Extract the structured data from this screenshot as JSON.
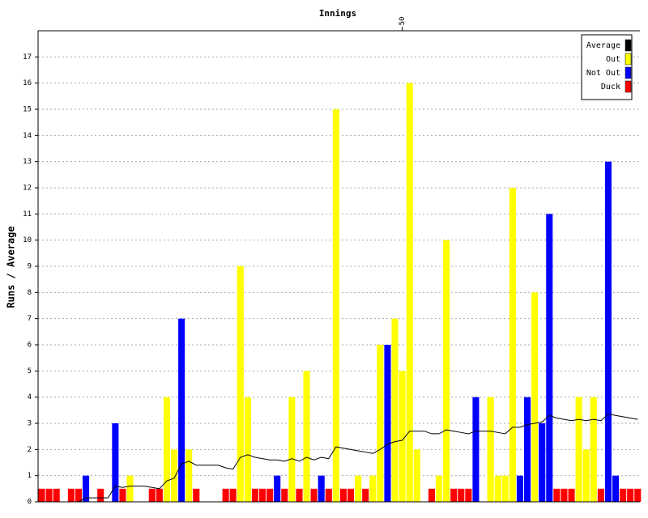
{
  "chart_data": {
    "type": "bar",
    "title": "Innings",
    "y_label": "Runs / Average",
    "x": [
      1,
      2,
      3,
      4,
      5,
      6,
      7,
      8,
      9,
      10,
      11,
      12,
      13,
      14,
      15,
      16,
      17,
      18,
      19,
      20,
      21,
      22,
      23,
      24,
      25,
      26,
      27,
      28,
      29,
      30,
      31,
      32,
      33,
      34,
      35,
      36,
      37,
      38,
      39,
      40,
      41,
      42,
      43,
      44,
      45,
      46,
      47,
      48,
      49,
      50,
      51,
      52,
      53,
      54,
      55,
      56,
      57,
      58,
      59,
      60,
      61,
      62,
      63,
      64,
      65,
      66,
      67,
      68,
      69,
      70,
      71,
      72,
      73,
      74,
      75,
      76,
      77,
      78,
      79,
      80,
      81,
      82
    ],
    "xlim": [
      0.5,
      82.3
    ],
    "xticks": [
      50
    ],
    "ylim": [
      0,
      18
    ],
    "yticks": [
      0,
      1,
      2,
      3,
      4,
      5,
      6,
      7,
      8,
      9,
      10,
      11,
      12,
      13,
      14,
      15,
      16,
      17
    ],
    "grid": true,
    "legend": "top-right",
    "series": [
      {
        "name": "Average",
        "type": "line",
        "color": "#000000",
        "values": [
          0,
          0,
          0,
          0,
          0,
          0,
          0.15,
          0.15,
          0.15,
          0.15,
          0.6,
          0.55,
          0.6,
          0.6,
          0.6,
          0.55,
          0.5,
          0.8,
          0.9,
          1.45,
          1.55,
          1.4,
          1.4,
          1.4,
          1.4,
          1.3,
          1.25,
          1.7,
          1.8,
          1.7,
          1.65,
          1.6,
          1.6,
          1.55,
          1.65,
          1.55,
          1.7,
          1.6,
          1.7,
          1.65,
          2.1,
          2.05,
          2.0,
          1.95,
          1.9,
          1.85,
          2.0,
          2.2,
          2.3,
          2.35,
          2.7,
          2.7,
          2.7,
          2.6,
          2.6,
          2.75,
          2.7,
          2.65,
          2.6,
          2.7,
          2.7,
          2.7,
          2.65,
          2.6,
          2.85,
          2.85,
          2.95,
          3.0,
          3.05,
          3.3,
          3.2,
          3.15,
          3.1,
          3.15,
          3.1,
          3.15,
          3.1,
          3.35,
          3.3,
          3.25,
          3.2,
          3.15
        ]
      },
      {
        "name": "Out",
        "type": "bar",
        "color": "#ffff00",
        "values": [
          null,
          null,
          null,
          null,
          null,
          null,
          null,
          null,
          null,
          null,
          null,
          null,
          1,
          null,
          null,
          null,
          null,
          4,
          2,
          null,
          2,
          null,
          null,
          null,
          null,
          null,
          null,
          9,
          4,
          null,
          null,
          null,
          null,
          null,
          4,
          null,
          5,
          null,
          null,
          null,
          15,
          null,
          null,
          1,
          null,
          1,
          6,
          null,
          7,
          5,
          16,
          2,
          null,
          null,
          1,
          10,
          null,
          null,
          null,
          null,
          null,
          4,
          1,
          1,
          12,
          null,
          null,
          8,
          null,
          null,
          null,
          null,
          null,
          4,
          2,
          4,
          null,
          null,
          null,
          null,
          null,
          null
        ]
      },
      {
        "name": "Not Out",
        "type": "bar",
        "color": "#0000ff",
        "values": [
          null,
          null,
          null,
          null,
          null,
          null,
          1,
          null,
          null,
          null,
          3,
          null,
          null,
          null,
          null,
          null,
          null,
          null,
          null,
          7,
          null,
          null,
          null,
          null,
          null,
          null,
          null,
          null,
          null,
          null,
          null,
          null,
          1,
          null,
          null,
          null,
          null,
          null,
          1,
          null,
          null,
          null,
          null,
          null,
          null,
          null,
          null,
          6,
          null,
          null,
          null,
          null,
          null,
          null,
          null,
          null,
          null,
          null,
          null,
          4,
          null,
          null,
          null,
          null,
          null,
          1,
          4,
          null,
          3,
          11,
          null,
          null,
          null,
          null,
          null,
          null,
          null,
          13,
          1,
          null,
          null,
          null
        ]
      },
      {
        "name": "Duck",
        "type": "bar",
        "color": "#ff0000",
        "values": [
          0.5,
          0.5,
          0.5,
          null,
          0.5,
          0.5,
          null,
          null,
          0.5,
          null,
          null,
          0.5,
          null,
          null,
          null,
          0.5,
          0.5,
          null,
          null,
          null,
          null,
          0.5,
          null,
          null,
          null,
          0.5,
          0.5,
          null,
          null,
          0.5,
          0.5,
          0.5,
          null,
          0.5,
          null,
          0.5,
          null,
          0.5,
          null,
          0.5,
          null,
          0.5,
          0.5,
          null,
          0.5,
          null,
          null,
          null,
          null,
          null,
          null,
          null,
          null,
          0.5,
          null,
          null,
          0.5,
          0.5,
          0.5,
          null,
          null,
          null,
          null,
          null,
          null,
          null,
          null,
          null,
          null,
          null,
          0.5,
          0.5,
          0.5,
          null,
          null,
          null,
          0.5,
          null,
          null,
          0.5,
          0.5,
          0.5
        ]
      }
    ]
  }
}
